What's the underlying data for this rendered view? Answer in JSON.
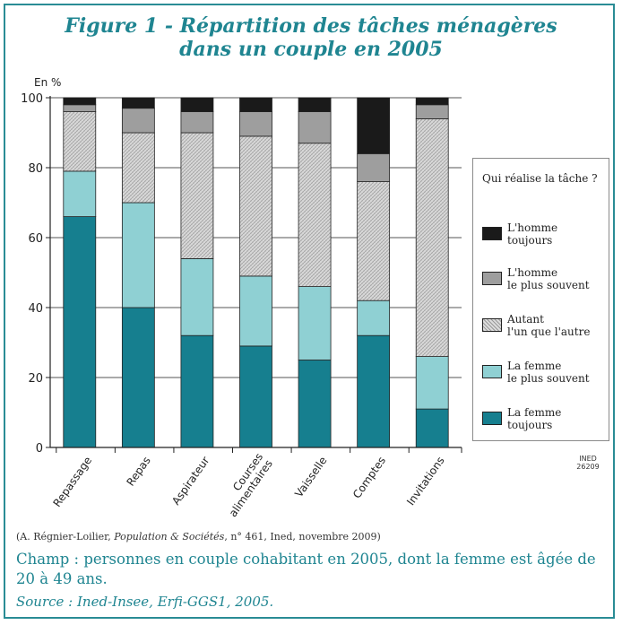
{
  "figure": {
    "title_line1": "Figure 1 - Répartition des tâches ménagères",
    "title_line2": "dans un couple en 2005"
  },
  "chart_data": {
    "type": "bar",
    "stacked": true,
    "ylabel": "En %",
    "ylim": [
      0,
      100
    ],
    "yticks": [
      0,
      20,
      40,
      60,
      80,
      100
    ],
    "grid": true,
    "categories": [
      "Repassage",
      "Repas",
      "Aspirateur",
      "Courses alimentaires",
      "Vaisselle",
      "Comptes",
      "Invitations"
    ],
    "series": [
      {
        "name": "La femme toujours",
        "color": "#167f8f",
        "pattern": "solid",
        "values": [
          66,
          40,
          32,
          29,
          25,
          32,
          11
        ]
      },
      {
        "name": "La femme le plus souvent",
        "color": "#8fd0d3",
        "pattern": "solid",
        "values": [
          13,
          30,
          22,
          20,
          21,
          10,
          15
        ]
      },
      {
        "name": "Autant l'un que l'autre",
        "color": "#d6d6d6",
        "pattern": "hatch",
        "values": [
          17,
          20,
          36,
          40,
          41,
          34,
          68
        ]
      },
      {
        "name": "L'homme le plus souvent",
        "color": "#9e9e9e",
        "pattern": "solid",
        "values": [
          2,
          7,
          6,
          7,
          9,
          8,
          4
        ]
      },
      {
        "name": "L'homme toujours",
        "color": "#1a1a1a",
        "pattern": "solid",
        "values": [
          2,
          3,
          4,
          4,
          4,
          16,
          2
        ]
      }
    ],
    "legend_position": "right"
  },
  "legend": {
    "heading": "Qui réalise la tâche ?",
    "items": [
      {
        "label": "L'homme\ntoujours",
        "color": "#1a1a1a",
        "pattern": "solid"
      },
      {
        "label": "L'homme\nle plus souvent",
        "color": "#9e9e9e",
        "pattern": "solid"
      },
      {
        "label": "Autant\nl'un que l'autre",
        "color": "#d6d6d6",
        "pattern": "hatch"
      },
      {
        "label": "La femme\nle plus souvent",
        "color": "#8fd0d3",
        "pattern": "solid"
      },
      {
        "label": "La femme\ntoujours",
        "color": "#167f8f",
        "pattern": "solid"
      }
    ]
  },
  "ined_mark": "INED\n26209",
  "citation": {
    "prefix": "(A. Régnier-Loilier, ",
    "journal": "Population & Sociétés",
    "suffix": ", n° 461, Ined, novembre 2009)"
  },
  "champ": "Champ : personnes en couple cohabitant en 2005, dont la femme est âgée de 20 à 49 ans.",
  "source": "Source : Ined-Insee, Erfi-GGS1, 2005.",
  "colors": {
    "accent": "#1f8591",
    "frame": "#2a8c95"
  }
}
